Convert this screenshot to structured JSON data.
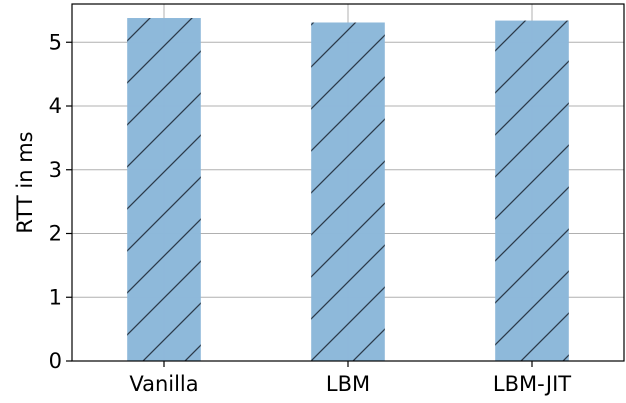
{
  "chart_data": {
    "type": "bar",
    "categories": [
      "Vanilla",
      "LBM",
      "LBM-JIT"
    ],
    "values": [
      5.38,
      5.31,
      5.34
    ],
    "xlabel": "",
    "ylabel": "RTT in ms",
    "ylim": [
      0,
      5.6
    ],
    "yticks": [
      0,
      1,
      2,
      3,
      4,
      5
    ],
    "grid": true,
    "bar_color": "#8cb8d9",
    "hatch": "/",
    "hatch_color": "#2b3a4a",
    "legend": "none"
  }
}
